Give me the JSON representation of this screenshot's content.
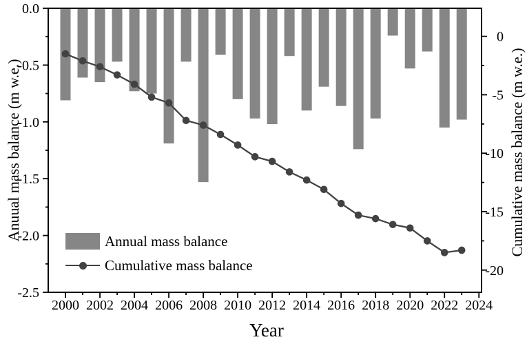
{
  "figure": {
    "colors": {
      "background": "#ffffff",
      "bar": "#868686",
      "line": "#424242",
      "axis": "#000000",
      "text": "#000000"
    },
    "x_axis": {
      "label": "Year",
      "range": [
        1999,
        2024.15
      ],
      "major_ticks": [
        2000,
        2002,
        2004,
        2006,
        2008,
        2010,
        2012,
        2014,
        2016,
        2018,
        2020,
        2022,
        2024
      ],
      "minor_ticks": [
        2001,
        2003,
        2005,
        2007,
        2009,
        2011,
        2013,
        2015,
        2017,
        2019,
        2021,
        2023
      ]
    },
    "left_axis": {
      "label": "Anuual mass balance (m w.e.)",
      "range": [
        0,
        -2.5
      ],
      "major_tick_labels": [
        "0.0",
        "-0.5",
        "-1.0",
        "-1.5",
        "-2.0",
        "-2.5"
      ],
      "major_tick_values": [
        0,
        -0.5,
        -1.0,
        -1.5,
        -2.0,
        -2.5
      ],
      "minor_tick_values": [
        -0.25,
        -0.75,
        -1.25,
        -1.75,
        -2.25
      ]
    },
    "right_axis": {
      "label": "Cumulative mass balance (m w.e.)",
      "range": [
        2.4,
        -21.9
      ],
      "major_tick_labels": [
        "0",
        "-5",
        "-10",
        "-15",
        "-20"
      ],
      "major_tick_values": [
        0,
        -5,
        -10,
        -15,
        -20
      ],
      "minor_tick_values": [
        -2.5,
        -7.5,
        -12.5,
        -17.5
      ]
    },
    "legend": {
      "annual_label": "Annual mass balance",
      "cumulative_label": "Cumulative mass balance"
    }
  },
  "chart_data": {
    "type": "bar+line",
    "title": "",
    "xlabel": "Year",
    "ylabel_left": "Anuual mass balance (m w.e.)",
    "ylabel_right": "Cumulative mass balance (m w.e.)",
    "categories": [
      2000,
      2001,
      2002,
      2003,
      2004,
      2005,
      2006,
      2007,
      2008,
      2009,
      2010,
      2011,
      2012,
      2013,
      2014,
      2015,
      2016,
      2017,
      2018,
      2019,
      2020,
      2021,
      2022,
      2023
    ],
    "series": [
      {
        "name": "Annual mass balance",
        "type": "bar",
        "axis": "left",
        "unit": "m w.e.",
        "values": [
          -0.81,
          -0.61,
          -0.65,
          -0.47,
          -0.73,
          -0.75,
          -1.19,
          -0.47,
          -1.53,
          -0.41,
          -0.8,
          -0.97,
          -1.02,
          -0.42,
          -0.9,
          -0.69,
          -0.86,
          -1.24,
          -0.97,
          -0.24,
          -0.53,
          -0.38,
          -1.05,
          -0.98
        ]
      },
      {
        "name": "Cumulative mass balance",
        "type": "line",
        "axis": "right",
        "unit": "m w.e.",
        "values": [
          -1.5,
          -2.1,
          -2.6,
          -3.3,
          -4.1,
          -5.2,
          -5.7,
          -7.2,
          -7.6,
          -8.4,
          -9.3,
          -10.3,
          -10.7,
          -11.6,
          -12.3,
          -13.1,
          -14.3,
          -15.3,
          -15.6,
          -16.1,
          -16.4,
          -17.5,
          -18.5,
          -18.3
        ]
      }
    ],
    "left_ylim": [
      -2.5,
      0
    ],
    "right_ylim": [
      -21.9,
      2.4
    ],
    "xlim": [
      1999,
      2024.15
    ],
    "grid": false,
    "legend_position": "lower-left"
  }
}
